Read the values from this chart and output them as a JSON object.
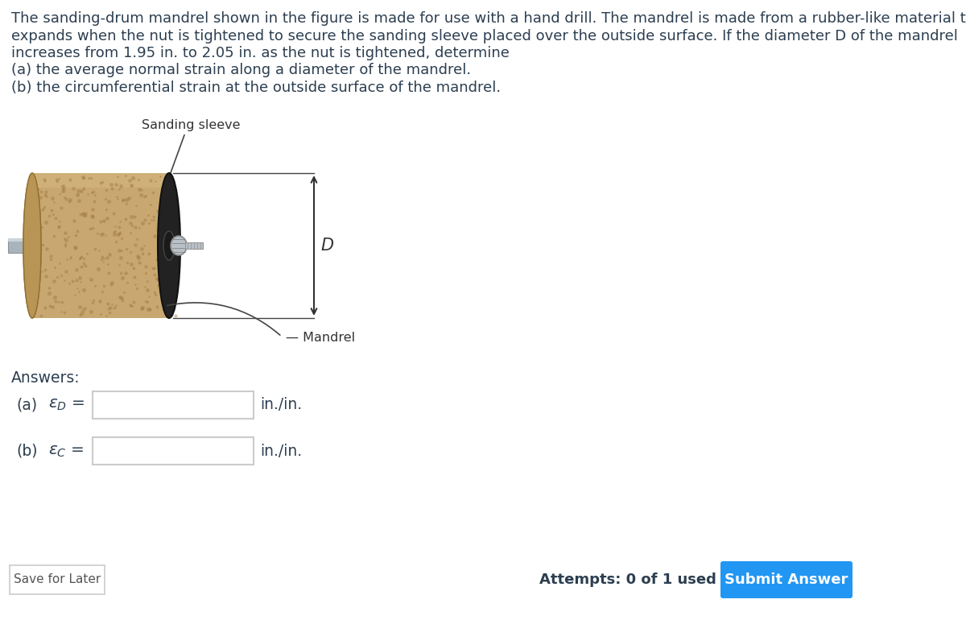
{
  "title_lines": [
    "The sanding-drum mandrel shown in the figure is made for use with a hand drill. The mandrel is made from a rubber-like material that",
    "expands when the nut is tightened to secure the sanding sleeve placed over the outside surface. If the diameter D of the mandrel",
    "increases from 1.95 in. to 2.05 in. as the nut is tightened, determine",
    "(a) the average normal strain along a diameter of the mandrel.",
    "(b) the circumferential strain at the outside surface of the mandrel."
  ],
  "answers_label": "Answers:",
  "part_a_label": "(a)",
  "part_a_epsilon": "$\\varepsilon_D$ =",
  "part_a_unit": "in./in.",
  "part_b_label": "(b)",
  "part_b_epsilon": "$\\varepsilon_C$ =",
  "part_b_unit": "in./in.",
  "save_button_text": "Save for Later",
  "attempts_text": "Attempts: 0 of 1 used",
  "submit_button_text": "Submit Answer",
  "submit_button_color": "#2196F3",
  "background_color": "#ffffff",
  "text_color": "#2c3e50",
  "input_box_border": "#cccccc",
  "font_size_title": 13.0,
  "font_size_body": 13.5,
  "sanding_sleeve_label": "Sanding sleeve",
  "mandrel_label": "Mandrel",
  "D_label": "D",
  "sleeve_color": "#c8a870",
  "sleeve_dark": "#a07840",
  "sleeve_left_color": "#b89555",
  "face_color": "#222222",
  "rod_color": "#a8b4bc",
  "rod_highlight": "#ccd4da",
  "nut_color": "#b8c0c8",
  "annotation_color": "#333333"
}
